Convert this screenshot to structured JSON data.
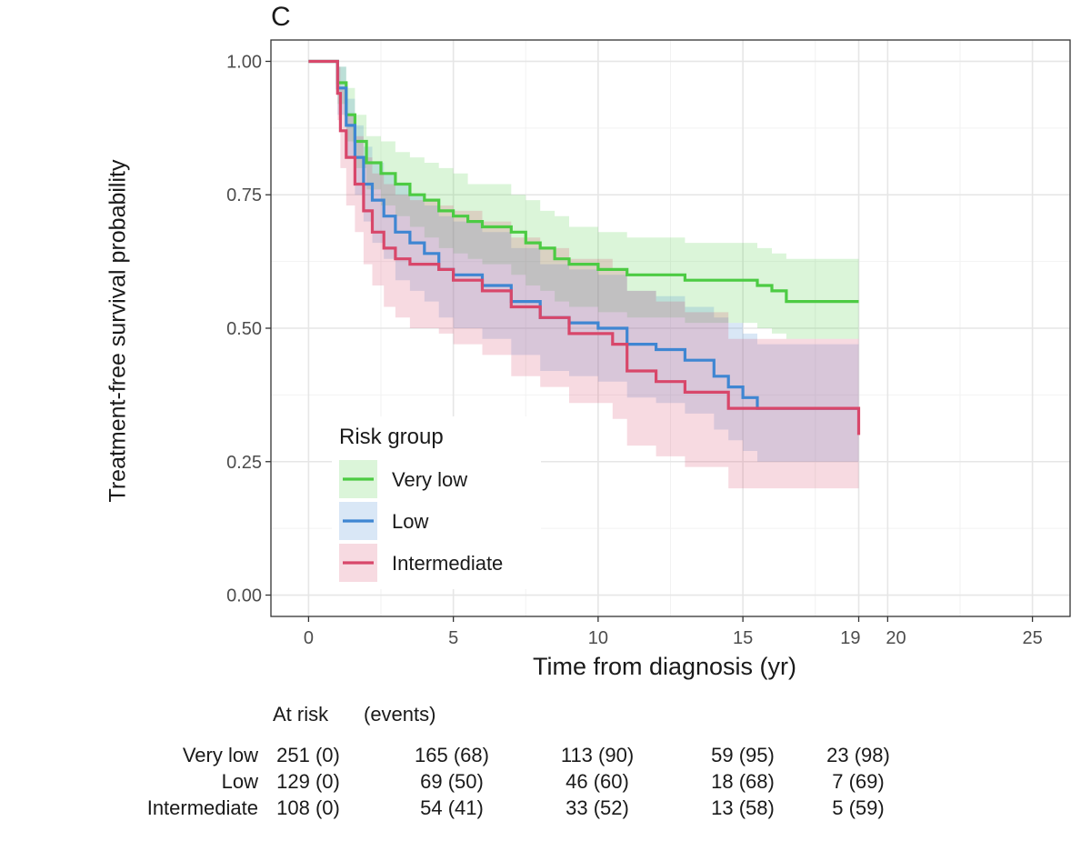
{
  "panel_label": "C",
  "chart_data": {
    "type": "line",
    "subtype": "kaplan-meier step curves with confidence bands",
    "title": "",
    "xlabel": "Time from diagnosis (yr)",
    "ylabel": "Treatment-free survival probability",
    "xlim": [
      -1.3,
      26.3
    ],
    "ylim": [
      -0.04,
      1.04
    ],
    "x_ticks": [
      0,
      5,
      10,
      15,
      19,
      20,
      25
    ],
    "x_tick_labels": [
      "0",
      "5",
      "10",
      "15",
      "19",
      "20",
      "25"
    ],
    "y_ticks": [
      0,
      0.25,
      0.5,
      0.75,
      1.0
    ],
    "y_tick_labels": [
      "0.00",
      "0.25",
      "0.50",
      "0.75",
      "1.00"
    ],
    "grid": true,
    "legend_title": "Risk group",
    "legend_position": "bottom-left inside",
    "series": [
      {
        "name": "Very low",
        "color": "#4ccb43",
        "x": [
          0,
          0.9,
          1.0,
          1.3,
          1.6,
          2.0,
          2.5,
          3.0,
          3.5,
          4.0,
          4.5,
          5.0,
          5.5,
          6.0,
          7.0,
          7.5,
          8.0,
          8.5,
          9.0,
          10.0,
          11.0,
          12.0,
          13.0,
          14.5,
          15.5,
          16.0,
          16.5,
          19.0
        ],
        "y": [
          1.0,
          1.0,
          0.96,
          0.9,
          0.85,
          0.81,
          0.79,
          0.77,
          0.75,
          0.74,
          0.72,
          0.71,
          0.7,
          0.69,
          0.68,
          0.66,
          0.65,
          0.63,
          0.62,
          0.61,
          0.6,
          0.6,
          0.59,
          0.59,
          0.58,
          0.57,
          0.55,
          0.55
        ],
        "ci_upper": [
          1.0,
          1.0,
          0.99,
          0.95,
          0.9,
          0.86,
          0.85,
          0.83,
          0.82,
          0.81,
          0.8,
          0.79,
          0.77,
          0.77,
          0.75,
          0.74,
          0.72,
          0.71,
          0.69,
          0.68,
          0.67,
          0.67,
          0.66,
          0.66,
          0.65,
          0.64,
          0.63,
          0.63
        ],
        "ci_lower": [
          1.0,
          1.0,
          0.92,
          0.85,
          0.8,
          0.76,
          0.73,
          0.71,
          0.69,
          0.67,
          0.65,
          0.64,
          0.63,
          0.62,
          0.6,
          0.58,
          0.57,
          0.55,
          0.54,
          0.53,
          0.52,
          0.52,
          0.51,
          0.51,
          0.5,
          0.49,
          0.48,
          0.48
        ]
      },
      {
        "name": "Low",
        "color": "#3f86d2",
        "x": [
          0,
          0.8,
          1.0,
          1.3,
          1.6,
          1.9,
          2.2,
          2.6,
          3.0,
          3.5,
          4.0,
          4.5,
          5.0,
          6.0,
          7.0,
          8.0,
          9.0,
          10.0,
          11.0,
          12.0,
          13.0,
          14.0,
          14.5,
          15.0,
          15.5,
          19.0
        ],
        "y": [
          1.0,
          1.0,
          0.95,
          0.88,
          0.82,
          0.77,
          0.74,
          0.71,
          0.68,
          0.66,
          0.64,
          0.61,
          0.6,
          0.58,
          0.55,
          0.52,
          0.51,
          0.5,
          0.47,
          0.46,
          0.44,
          0.41,
          0.39,
          0.37,
          0.35,
          0.35
        ],
        "ci_upper": [
          1.0,
          1.0,
          0.99,
          0.93,
          0.88,
          0.84,
          0.81,
          0.79,
          0.77,
          0.75,
          0.73,
          0.71,
          0.7,
          0.68,
          0.65,
          0.62,
          0.61,
          0.6,
          0.57,
          0.56,
          0.54,
          0.52,
          0.51,
          0.49,
          0.47,
          0.47
        ],
        "ci_lower": [
          1.0,
          1.0,
          0.9,
          0.82,
          0.75,
          0.7,
          0.66,
          0.63,
          0.59,
          0.57,
          0.55,
          0.52,
          0.5,
          0.48,
          0.45,
          0.42,
          0.41,
          0.4,
          0.37,
          0.36,
          0.34,
          0.31,
          0.29,
          0.27,
          0.25,
          0.25
        ]
      },
      {
        "name": "Intermediate",
        "color": "#d8476a",
        "x": [
          0,
          0.9,
          1.0,
          1.1,
          1.3,
          1.6,
          1.9,
          2.2,
          2.6,
          3.0,
          3.5,
          4.5,
          5.0,
          6.0,
          7.0,
          8.0,
          9.0,
          10.5,
          11.0,
          12.0,
          13.0,
          14.5,
          19.0
        ],
        "y": [
          1.0,
          1.0,
          0.94,
          0.87,
          0.82,
          0.77,
          0.72,
          0.68,
          0.65,
          0.63,
          0.62,
          0.61,
          0.59,
          0.57,
          0.54,
          0.52,
          0.49,
          0.47,
          0.42,
          0.4,
          0.38,
          0.35,
          0.3
        ],
        "ci_upper": [
          1.0,
          1.0,
          0.99,
          0.95,
          0.9,
          0.86,
          0.82,
          0.79,
          0.77,
          0.75,
          0.74,
          0.73,
          0.72,
          0.7,
          0.67,
          0.65,
          0.63,
          0.61,
          0.57,
          0.55,
          0.53,
          0.48,
          0.48
        ],
        "ci_lower": [
          1.0,
          1.0,
          0.89,
          0.8,
          0.73,
          0.68,
          0.62,
          0.58,
          0.54,
          0.52,
          0.5,
          0.49,
          0.47,
          0.45,
          0.41,
          0.39,
          0.36,
          0.33,
          0.28,
          0.26,
          0.24,
          0.2,
          0.18
        ]
      }
    ]
  },
  "risk_table": {
    "header_at_risk": "At risk",
    "header_events": "(events)",
    "rows": [
      {
        "name": "Very low",
        "cells": [
          "251 (0)",
          "165 (68)",
          "113 (90)",
          "59 (95)",
          "23 (98)"
        ]
      },
      {
        "name": "Low",
        "cells": [
          "129 (0)",
          "69 (50)",
          "46 (60)",
          "18 (68)",
          "7 (69)"
        ]
      },
      {
        "name": "Intermediate",
        "cells": [
          "108 (0)",
          "54 (41)",
          "33 (52)",
          "13 (58)",
          "5 (59)"
        ]
      }
    ]
  }
}
